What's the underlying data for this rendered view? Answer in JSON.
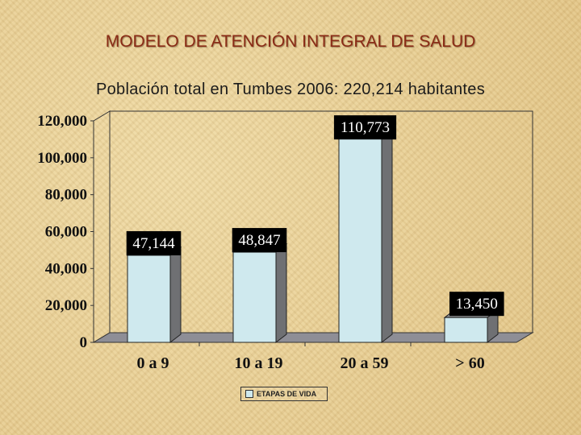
{
  "header": {
    "title": "MODELO DE ATENCIÓN INTEGRAL DE SALUD",
    "subtitle": "Población total en Tumbes 2006: 220,214 habitantes"
  },
  "chart_data": {
    "type": "bar",
    "title": "",
    "xlabel": "",
    "ylabel": "",
    "categories": [
      "0 a 9",
      "10 a 19",
      "20 a 59",
      "> 60"
    ],
    "series": [
      {
        "name": "ETAPAS DE VIDA",
        "values": [
          47144,
          48847,
          110773,
          13450
        ]
      }
    ],
    "data_labels": [
      "47,144",
      "48,847",
      "110,773",
      "13,450"
    ],
    "y_ticks": [
      "0",
      "20,000",
      "40,000",
      "60,000",
      "80,000",
      "100,000",
      "120,000"
    ],
    "ylim": [
      0,
      120000
    ],
    "grid": false,
    "legend": "bottom-center",
    "colors": {
      "bar_front": "#cfe9ee",
      "bar_side": "#6f7073",
      "bar_top": "#8b8d90",
      "floor": "#8e8e96",
      "label_bg": "#000000",
      "label_text": "#ffffff"
    }
  }
}
